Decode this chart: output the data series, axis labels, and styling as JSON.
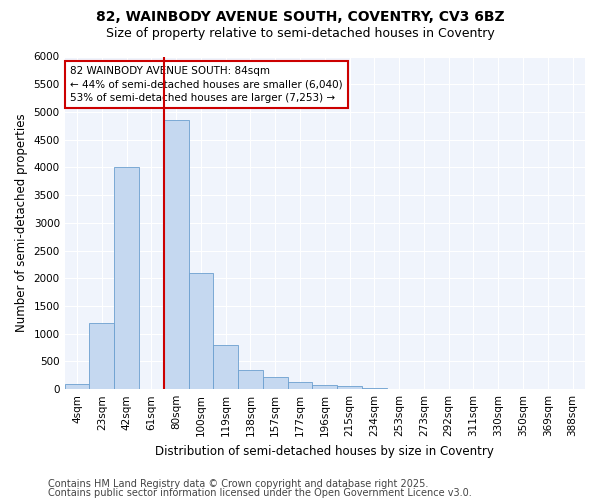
{
  "title_line1": "82, WAINBODY AVENUE SOUTH, COVENTRY, CV3 6BZ",
  "title_line2": "Size of property relative to semi-detached houses in Coventry",
  "xlabel": "Distribution of semi-detached houses by size in Coventry",
  "ylabel": "Number of semi-detached properties",
  "categories": [
    "4sqm",
    "23sqm",
    "42sqm",
    "61sqm",
    "80sqm",
    "100sqm",
    "119sqm",
    "138sqm",
    "157sqm",
    "177sqm",
    "196sqm",
    "215sqm",
    "234sqm",
    "253sqm",
    "273sqm",
    "292sqm",
    "311sqm",
    "330sqm",
    "350sqm",
    "369sqm",
    "388sqm"
  ],
  "values": [
    100,
    1200,
    4000,
    0,
    4850,
    2100,
    800,
    350,
    225,
    125,
    75,
    50,
    30,
    10,
    5,
    2,
    1,
    0,
    0,
    0,
    0
  ],
  "bar_color": "#c5d8f0",
  "bar_edge_color": "#6b9fcf",
  "vline_index": 4,
  "annotation_text": "82 WAINBODY AVENUE SOUTH: 84sqm\n← 44% of semi-detached houses are smaller (6,040)\n53% of semi-detached houses are larger (7,253) →",
  "annotation_box_color": "#ffffff",
  "annotation_box_edge": "#cc0000",
  "vline_color": "#cc0000",
  "ylim": [
    0,
    6000
  ],
  "yticks": [
    0,
    500,
    1000,
    1500,
    2000,
    2500,
    3000,
    3500,
    4000,
    4500,
    5000,
    5500,
    6000
  ],
  "footer_line1": "Contains HM Land Registry data © Crown copyright and database right 2025.",
  "footer_line2": "Contains public sector information licensed under the Open Government Licence v3.0.",
  "bg_color": "#ffffff",
  "plot_bg_color": "#f0f4fc",
  "title_fontsize": 10,
  "subtitle_fontsize": 9,
  "axis_label_fontsize": 8.5,
  "tick_fontsize": 7.5,
  "footer_fontsize": 7,
  "grid_color": "#ffffff",
  "annotation_fontsize": 7.5
}
